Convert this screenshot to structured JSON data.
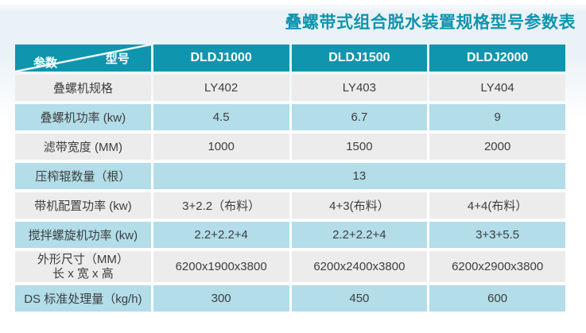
{
  "title": "叠螺带式组合脱水装置规格型号参数表",
  "colors": {
    "teal": "#0f95ae",
    "row_blue": "#b2dde9",
    "row_gray": "#ececec",
    "band_blue": "#eaf2f7",
    "cell_text": "#3e3e3e"
  },
  "table": {
    "corner": {
      "param_label": "参数",
      "model_label": "型号"
    },
    "columns": [
      "DLDJ1000",
      "DLDJ1500",
      "DLDJ2000"
    ],
    "rows": [
      {
        "label": "叠螺机规格",
        "values": [
          "LY402",
          "LY403",
          "LY404"
        ],
        "variant": "gray"
      },
      {
        "label": "叠螺机功率 (kw)",
        "values": [
          "4.5",
          "6.7",
          "9"
        ],
        "variant": "blue"
      },
      {
        "label": "滤带宽度 (MM)",
        "values": [
          "1000",
          "1500",
          "2000"
        ],
        "variant": "gray"
      },
      {
        "label": "压榨辊数量（根）",
        "values": [
          "13"
        ],
        "colspan": 3,
        "variant": "blue"
      },
      {
        "label": "带机配置功率 (kw)",
        "values": [
          "3+2.2（布料）",
          "4+3(布料）",
          "4+4(布料）"
        ],
        "variant": "gray"
      },
      {
        "label": "搅拌螺旋机功率 (kw)",
        "values": [
          "2.2+2.2+4",
          "2.2+2.2+4",
          "3+3+5.5"
        ],
        "variant": "blue"
      },
      {
        "label": "外形尺寸（MM）",
        "label_line2": "长 x 宽 x 高",
        "values": [
          "6200x1900x3800",
          "6200x2400x3800",
          "6200x2900x3800"
        ],
        "variant": "gray",
        "tall": true
      },
      {
        "label": "DS 标准处理量（kg/h)",
        "values": [
          "300",
          "450",
          "600"
        ],
        "variant": "blue"
      }
    ]
  }
}
